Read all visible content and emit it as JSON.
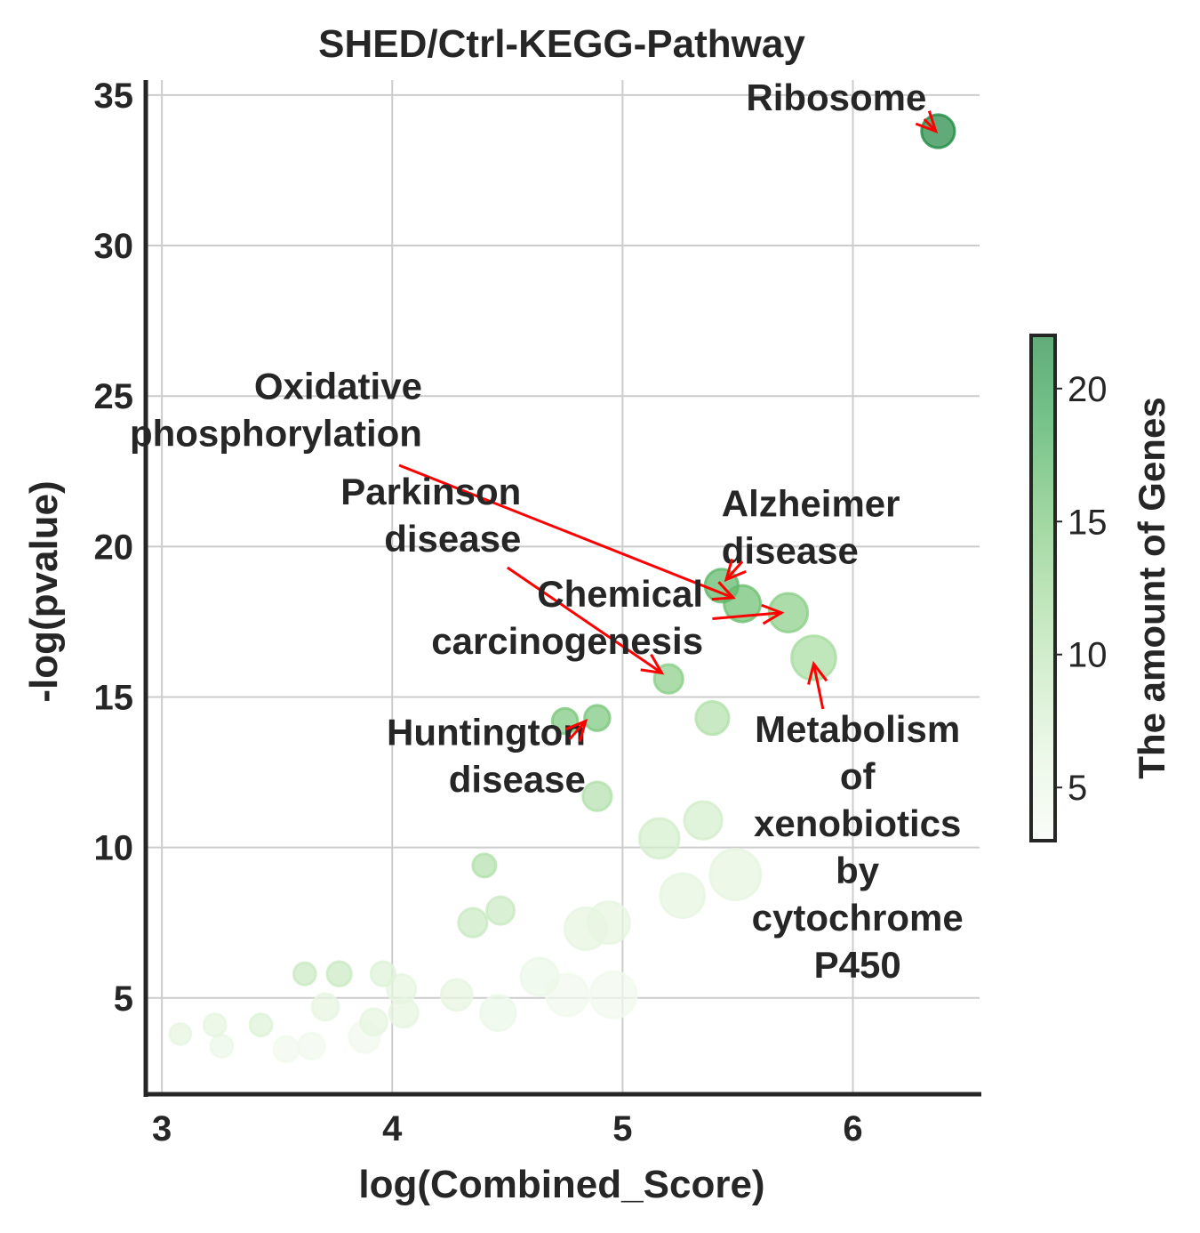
{
  "chart_data": {
    "type": "scatter",
    "title": "SHED/Ctrl-KEGG-Pathway",
    "xlabel": "log(Combined_Score)",
    "ylabel": "-log(pvalue)",
    "xlim": [
      2.93,
      6.55
    ],
    "ylim": [
      1.8,
      35.5
    ],
    "xticks": [
      "3",
      "4",
      "5",
      "6"
    ],
    "yticks": [
      "5",
      "10",
      "15",
      "20",
      "25",
      "30",
      "35"
    ],
    "grid": true,
    "colorbar": {
      "label": "The amount of Genes",
      "min": 3,
      "max": 22,
      "ticks": [
        "5",
        "10",
        "15",
        "20"
      ],
      "colors": [
        "#f7fcf5",
        "#e5f5e0",
        "#c7e9c0",
        "#a1d99b",
        "#74c476",
        "#41ab5d",
        "#238b45"
      ]
    },
    "points": [
      {
        "x": 6.37,
        "y": 33.8,
        "genes": 22,
        "size": 3
      },
      {
        "x": 5.43,
        "y": 18.7,
        "genes": 17,
        "size": 3
      },
      {
        "x": 5.52,
        "y": 18.1,
        "genes": 16,
        "size": 3.3
      },
      {
        "x": 5.72,
        "y": 17.8,
        "genes": 14,
        "size": 3.5
      },
      {
        "x": 5.83,
        "y": 16.3,
        "genes": 12,
        "size": 4
      },
      {
        "x": 5.2,
        "y": 15.6,
        "genes": 14,
        "size": 2.6
      },
      {
        "x": 5.39,
        "y": 14.3,
        "genes": 11,
        "size": 3
      },
      {
        "x": 4.89,
        "y": 14.3,
        "genes": 15,
        "size": 2.3
      },
      {
        "x": 4.75,
        "y": 14.2,
        "genes": 15,
        "size": 2.3
      },
      {
        "x": 4.89,
        "y": 11.7,
        "genes": 11,
        "size": 2.6
      },
      {
        "x": 5.35,
        "y": 10.9,
        "genes": 8,
        "size": 3.4
      },
      {
        "x": 5.16,
        "y": 10.3,
        "genes": 8,
        "size": 3.6
      },
      {
        "x": 4.4,
        "y": 9.4,
        "genes": 11,
        "size": 2.1
      },
      {
        "x": 5.49,
        "y": 9.1,
        "genes": 6,
        "size": 4.6
      },
      {
        "x": 5.26,
        "y": 8.4,
        "genes": 6,
        "size": 4
      },
      {
        "x": 4.47,
        "y": 7.9,
        "genes": 9,
        "size": 2.5
      },
      {
        "x": 4.35,
        "y": 7.5,
        "genes": 9,
        "size": 2.6
      },
      {
        "x": 4.94,
        "y": 7.5,
        "genes": 6,
        "size": 3.8
      },
      {
        "x": 4.84,
        "y": 7.3,
        "genes": 6,
        "size": 3.8
      },
      {
        "x": 3.62,
        "y": 5.8,
        "genes": 9,
        "size": 2
      },
      {
        "x": 3.77,
        "y": 5.8,
        "genes": 9,
        "size": 2.2
      },
      {
        "x": 3.96,
        "y": 5.8,
        "genes": 7,
        "size": 2.2
      },
      {
        "x": 4.64,
        "y": 5.7,
        "genes": 5,
        "size": 3.4
      },
      {
        "x": 4.04,
        "y": 5.3,
        "genes": 6,
        "size": 2.6
      },
      {
        "x": 4.28,
        "y": 5.1,
        "genes": 6,
        "size": 2.8
      },
      {
        "x": 4.76,
        "y": 5.1,
        "genes": 4,
        "size": 3.8
      },
      {
        "x": 4.96,
        "y": 5.1,
        "genes": 4,
        "size": 4.2
      },
      {
        "x": 3.71,
        "y": 4.7,
        "genes": 6,
        "size": 2.4
      },
      {
        "x": 4.05,
        "y": 4.5,
        "genes": 6,
        "size": 2.6
      },
      {
        "x": 4.46,
        "y": 4.5,
        "genes": 5,
        "size": 3.2
      },
      {
        "x": 3.92,
        "y": 4.2,
        "genes": 6,
        "size": 2.4
      },
      {
        "x": 3.43,
        "y": 4.1,
        "genes": 7,
        "size": 2
      },
      {
        "x": 3.23,
        "y": 4.1,
        "genes": 6,
        "size": 2
      },
      {
        "x": 3.08,
        "y": 3.8,
        "genes": 6,
        "size": 1.9
      },
      {
        "x": 3.88,
        "y": 3.7,
        "genes": 4,
        "size": 2.8
      },
      {
        "x": 3.26,
        "y": 3.4,
        "genes": 5,
        "size": 2
      },
      {
        "x": 3.54,
        "y": 3.3,
        "genes": 4,
        "size": 2.3
      },
      {
        "x": 3.65,
        "y": 3.4,
        "genes": 4,
        "size": 2.4
      }
    ],
    "annotations": [
      {
        "lines": [
          "Ribosome"
        ],
        "text_x": 6.32,
        "text_y": 34.5,
        "target_x": 6.36,
        "target_y": 33.8,
        "anchor": "end",
        "arrow_from": [
          6.31,
          34.2
        ]
      },
      {
        "lines": [
          "Oxidative",
          "phosphorylation"
        ],
        "text_x": 4.13,
        "text_y": 24.9,
        "target_x": 5.48,
        "target_y": 18.3,
        "anchor": "end",
        "arrow_from": [
          4.03,
          22.7
        ]
      },
      {
        "lines": [
          "Parkinson",
          "disease"
        ],
        "text_x": 4.56,
        "text_y": 21.4,
        "target_x": 5.17,
        "target_y": 15.8,
        "anchor": "end",
        "arrow_from": [
          4.5,
          19.3
        ]
      },
      {
        "lines": [
          "Alzheimer",
          "disease"
        ],
        "text_x": 5.43,
        "text_y": 21.0,
        "target_x": 5.45,
        "target_y": 18.9,
        "anchor": "start",
        "arrow_from": [
          5.52,
          19.5
        ]
      },
      {
        "lines": [
          "Chemical",
          "carcinogenesis"
        ],
        "text_x": 5.35,
        "text_y": 18.0,
        "target_x": 5.69,
        "target_y": 17.8,
        "anchor": "end",
        "arrow_from": [
          5.39,
          17.6
        ]
      },
      {
        "lines": [
          "Huntington",
          "disease"
        ],
        "text_x": 4.84,
        "text_y": 13.4,
        "target_x": 4.84,
        "target_y": 14.2,
        "anchor": "end",
        "arrow_from": [
          4.77,
          13.6
        ]
      },
      {
        "lines": [
          "Metabolism",
          "of",
          "xenobiotics",
          "by",
          "cytochrome",
          "P450"
        ],
        "text_x": 6.02,
        "text_y": 13.5,
        "target_x": 5.83,
        "target_y": 16.1,
        "anchor": "middle",
        "arrow_from": [
          5.87,
          14.6
        ]
      }
    ]
  }
}
